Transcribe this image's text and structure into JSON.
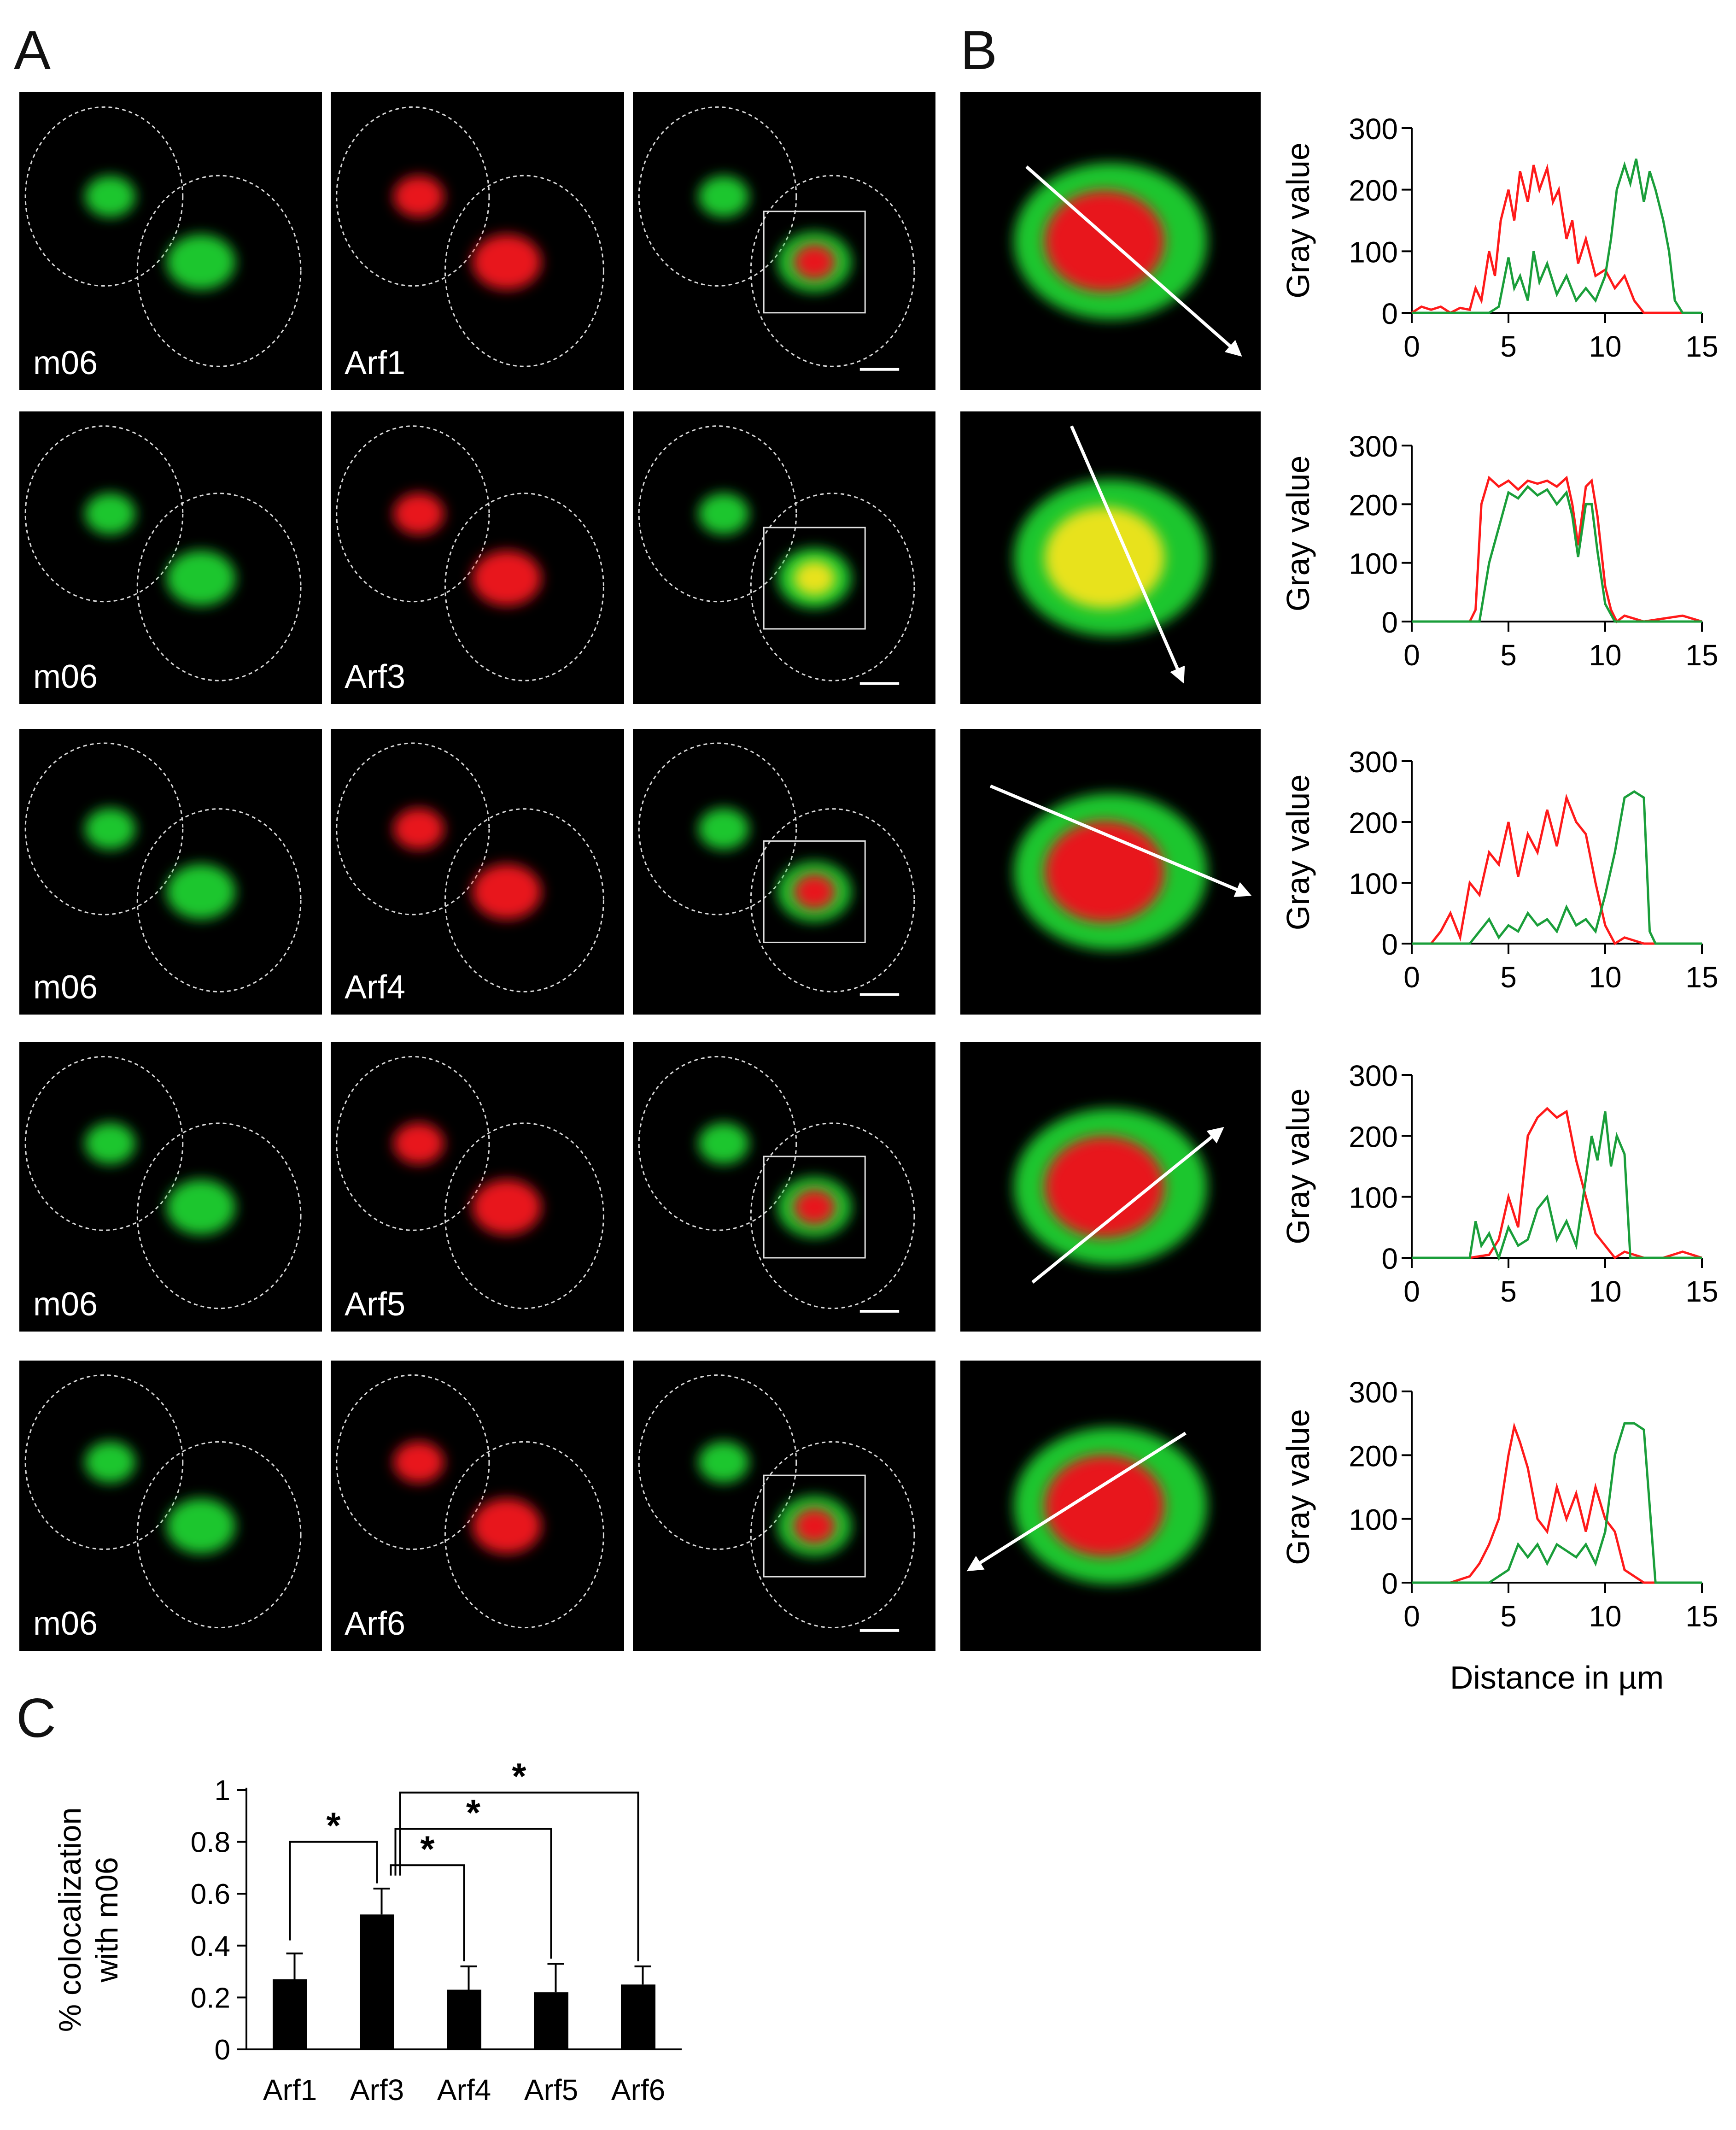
{
  "panel_letters": {
    "a": "A",
    "b": "B",
    "c": "C"
  },
  "rows": [
    {
      "channel_green": "m06",
      "channel_red": "Arf1"
    },
    {
      "channel_green": "m06",
      "channel_red": "Arf3"
    },
    {
      "channel_green": "m06",
      "channel_red": "Arf4"
    },
    {
      "channel_green": "m06",
      "channel_red": "Arf5"
    },
    {
      "channel_green": "m06",
      "channel_red": "Arf6"
    }
  ],
  "colors": {
    "red_channel": "#e8151b",
    "green_channel": "#1fc62e",
    "yellow_overlap": "#e8e21a",
    "bar": "#000000",
    "profile_red": "#ff1a1a",
    "profile_green": "#1a9e3a"
  },
  "chart_data": [
    {
      "type": "line",
      "ylabel": "Gray value",
      "xlabel": "",
      "xlim": [
        0,
        15
      ],
      "ylim": [
        0,
        300
      ],
      "xticks": [
        0,
        5,
        10,
        15
      ],
      "yticks": [
        0,
        100,
        200,
        300
      ],
      "series": [
        {
          "x": [
            0,
            0.5,
            1,
            1.5,
            2,
            2.5,
            3,
            3.3,
            3.6,
            4,
            4.3,
            4.6,
            5,
            5.3,
            5.6,
            6,
            6.3,
            6.6,
            7,
            7.3,
            7.6,
            8,
            8.3,
            8.6,
            9,
            9.5,
            10,
            10.5,
            11,
            11.5,
            12,
            12.5,
            13,
            14,
            15
          ],
          "y": [
            0,
            10,
            5,
            10,
            0,
            8,
            5,
            40,
            20,
            100,
            60,
            150,
            200,
            150,
            230,
            180,
            240,
            200,
            235,
            180,
            200,
            120,
            150,
            80,
            120,
            60,
            70,
            40,
            60,
            20,
            0,
            0,
            0,
            0,
            0
          ]
        },
        {
          "x": [
            0,
            1,
            2,
            3,
            3.5,
            4,
            4.5,
            5,
            5.3,
            5.6,
            6,
            6.3,
            6.6,
            7,
            7.5,
            8,
            8.5,
            9,
            9.5,
            10,
            10.3,
            10.6,
            11,
            11.3,
            11.6,
            12,
            12.3,
            12.6,
            13,
            13.3,
            13.6,
            14,
            15
          ],
          "y": [
            0,
            0,
            0,
            0,
            0,
            0,
            10,
            90,
            40,
            60,
            20,
            100,
            50,
            80,
            30,
            60,
            20,
            40,
            20,
            60,
            120,
            200,
            240,
            210,
            250,
            180,
            230,
            200,
            150,
            100,
            20,
            0,
            0
          ]
        }
      ]
    },
    {
      "type": "line",
      "ylabel": "Gray value",
      "xlabel": "",
      "xlim": [
        0,
        15
      ],
      "ylim": [
        0,
        300
      ],
      "xticks": [
        0,
        5,
        10,
        15
      ],
      "yticks": [
        0,
        100,
        200,
        300
      ],
      "series": [
        {
          "x": [
            0,
            1,
            2,
            3,
            3.3,
            3.6,
            4,
            4.5,
            5,
            5.5,
            6,
            6.5,
            7,
            7.5,
            8,
            8.3,
            8.6,
            9,
            9.3,
            9.6,
            10,
            10.3,
            10.6,
            11,
            12,
            13,
            14,
            15
          ],
          "y": [
            0,
            0,
            0,
            0,
            20,
            200,
            245,
            230,
            240,
            225,
            240,
            235,
            240,
            230,
            245,
            200,
            130,
            230,
            240,
            180,
            60,
            20,
            0,
            10,
            0,
            5,
            10,
            0
          ]
        },
        {
          "x": [
            0,
            1,
            2,
            3,
            3.5,
            3.8,
            4,
            4.5,
            5,
            5.5,
            6,
            6.5,
            7,
            7.5,
            8,
            8.3,
            8.6,
            9,
            9.3,
            9.6,
            10,
            10.5,
            11,
            12,
            15
          ],
          "y": [
            0,
            0,
            0,
            0,
            0,
            60,
            100,
            160,
            220,
            210,
            230,
            215,
            225,
            200,
            220,
            180,
            110,
            200,
            200,
            120,
            30,
            0,
            0,
            0,
            0
          ]
        }
      ]
    },
    {
      "type": "line",
      "ylabel": "Gray value",
      "xlabel": "",
      "xlim": [
        0,
        15
      ],
      "ylim": [
        0,
        300
      ],
      "xticks": [
        0,
        5,
        10,
        15
      ],
      "yticks": [
        0,
        100,
        200,
        300
      ],
      "series": [
        {
          "x": [
            0,
            1,
            1.5,
            2,
            2.5,
            3,
            3.5,
            4,
            4.5,
            5,
            5.5,
            6,
            6.5,
            7,
            7.5,
            8,
            8.5,
            9,
            9.5,
            10,
            10.5,
            11,
            12,
            13,
            15
          ],
          "y": [
            0,
            0,
            20,
            50,
            10,
            100,
            80,
            150,
            130,
            200,
            110,
            180,
            150,
            220,
            160,
            240,
            200,
            180,
            100,
            30,
            0,
            10,
            0,
            0,
            0
          ]
        },
        {
          "x": [
            0,
            1,
            2,
            3,
            3.5,
            4,
            4.5,
            5,
            5.5,
            6,
            6.5,
            7,
            7.5,
            8,
            8.5,
            9,
            9.5,
            10,
            10.5,
            11,
            11.5,
            12,
            12.3,
            12.6,
            13,
            15
          ],
          "y": [
            0,
            0,
            0,
            0,
            20,
            40,
            10,
            30,
            20,
            50,
            30,
            40,
            20,
            60,
            30,
            40,
            20,
            80,
            150,
            240,
            250,
            240,
            20,
            0,
            0,
            0
          ]
        }
      ]
    },
    {
      "type": "line",
      "ylabel": "Gray value",
      "xlabel": "",
      "xlim": [
        0,
        15
      ],
      "ylim": [
        0,
        300
      ],
      "xticks": [
        0,
        5,
        10,
        15
      ],
      "yticks": [
        0,
        100,
        200,
        300
      ],
      "series": [
        {
          "x": [
            0,
            1,
            2,
            3,
            4,
            4.5,
            5,
            5.5,
            6,
            6.5,
            7,
            7.5,
            8,
            8.5,
            9,
            9.5,
            10,
            10.5,
            11,
            12,
            13,
            14,
            15
          ],
          "y": [
            0,
            0,
            0,
            0,
            5,
            30,
            100,
            50,
            200,
            230,
            245,
            230,
            240,
            160,
            100,
            40,
            20,
            0,
            10,
            0,
            0,
            10,
            0
          ]
        },
        {
          "x": [
            0,
            1,
            2,
            3,
            3.3,
            3.6,
            4,
            4.5,
            5,
            5.5,
            6,
            6.5,
            7,
            7.5,
            8,
            8.5,
            9,
            9.3,
            9.6,
            10,
            10.3,
            10.6,
            11,
            11.3,
            12,
            15
          ],
          "y": [
            0,
            0,
            0,
            0,
            60,
            20,
            40,
            0,
            50,
            20,
            30,
            80,
            100,
            30,
            60,
            20,
            130,
            200,
            160,
            240,
            150,
            200,
            170,
            0,
            0,
            0
          ]
        }
      ]
    },
    {
      "type": "line",
      "ylabel": "Gray value",
      "xlabel": "Distance in µm",
      "xlim": [
        0,
        15
      ],
      "ylim": [
        0,
        300
      ],
      "xticks": [
        0,
        5,
        10,
        15
      ],
      "yticks": [
        0,
        100,
        200,
        300
      ],
      "series": [
        {
          "x": [
            0,
            1,
            2,
            3,
            3.5,
            4,
            4.5,
            5,
            5.3,
            5.6,
            6,
            6.5,
            7,
            7.5,
            8,
            8.5,
            9,
            9.5,
            10,
            10.5,
            11,
            12,
            13,
            14,
            15
          ],
          "y": [
            0,
            0,
            0,
            10,
            30,
            60,
            100,
            200,
            245,
            220,
            180,
            100,
            80,
            150,
            100,
            140,
            80,
            150,
            100,
            80,
            20,
            0,
            0,
            0,
            0
          ]
        },
        {
          "x": [
            0,
            1,
            2,
            3,
            4,
            4.5,
            5,
            5.5,
            6,
            6.5,
            7,
            7.5,
            8,
            8.5,
            9,
            9.5,
            10,
            10.5,
            11,
            11.5,
            12,
            12.3,
            12.6,
            13,
            14,
            15
          ],
          "y": [
            0,
            0,
            0,
            0,
            0,
            10,
            20,
            60,
            40,
            60,
            30,
            60,
            50,
            40,
            60,
            30,
            80,
            200,
            250,
            250,
            240,
            120,
            0,
            0,
            0,
            0
          ]
        }
      ]
    },
    {
      "type": "bar",
      "ylabel": "% colocalization with m06",
      "xlabel": "",
      "categories": [
        "Arf1",
        "Arf3",
        "Arf4",
        "Arf5",
        "Arf6"
      ],
      "values": [
        0.27,
        0.52,
        0.23,
        0.22,
        0.25
      ],
      "errors": [
        0.1,
        0.1,
        0.09,
        0.11,
        0.07
      ],
      "ylim": [
        0,
        1
      ],
      "yticks": [
        "0",
        "0.2",
        "0.4",
        "0.6",
        "0.8",
        "1"
      ],
      "significance_marker": "*",
      "comparisons": [
        [
          "Arf1",
          "Arf3"
        ],
        [
          "Arf3",
          "Arf4"
        ],
        [
          "Arf3",
          "Arf5"
        ],
        [
          "Arf3",
          "Arf6"
        ]
      ]
    }
  ]
}
